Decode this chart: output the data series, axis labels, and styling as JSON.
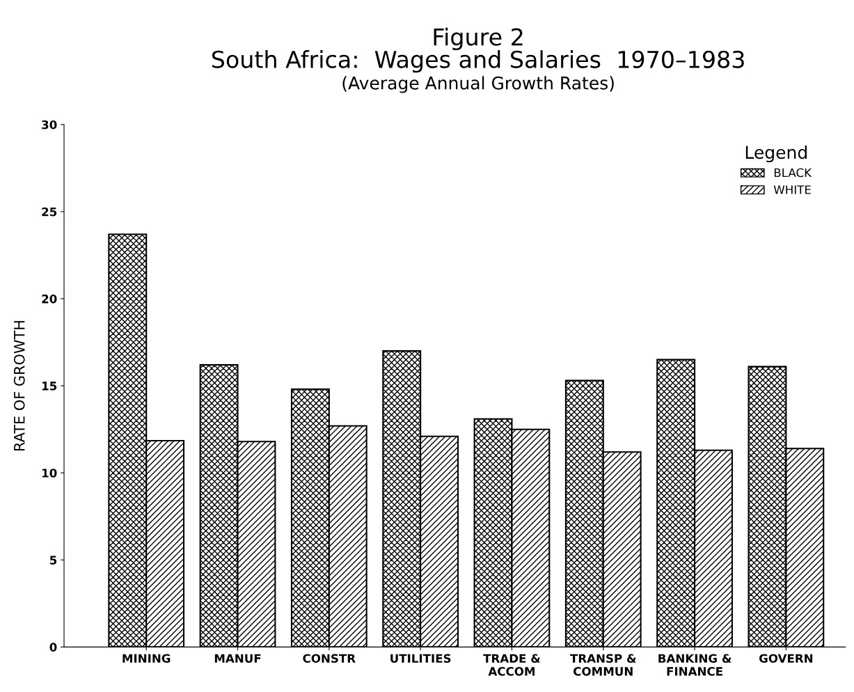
{
  "chart_data": {
    "type": "bar",
    "title": "Figure 2\nSouth Africa:  Wages and Salaries  1970–1983",
    "subtitle": "(Average Annual Growth Rates)",
    "ylabel": "RATE OF GROWTH",
    "legend_title": "Legend",
    "categories": [
      "MINING",
      "MANUF",
      "CONSTR",
      "UTILITIES",
      "TRADE &\nACCOM",
      "TRANSP &\nCOMMUN",
      "BANKING &\nFINANCE",
      "GOVERN"
    ],
    "series": [
      {
        "name": "BLACK",
        "color": "#000000",
        "values": [
          23.7,
          16.2,
          14.8,
          17.0,
          13.1,
          15.3,
          16.5,
          16.1
        ]
      },
      {
        "name": "WHITE",
        "color": "#000000",
        "values": [
          11.85,
          11.8,
          12.7,
          12.1,
          12.5,
          11.2,
          11.3,
          11.4
        ]
      }
    ],
    "ylim": [
      0,
      30
    ],
    "yticks": [
      0,
      5,
      10,
      15,
      20,
      25,
      30
    ],
    "grid": false,
    "legend": "top right"
  }
}
